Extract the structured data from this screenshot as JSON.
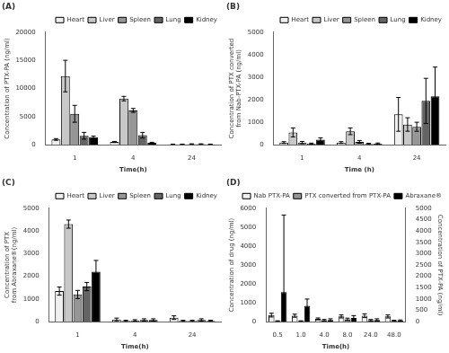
{
  "chart_data": [
    {
      "type": "bar",
      "title": "(A)",
      "xlabel": "Time(h)",
      "ylabel": "Concentration of PTX-PA (ng/ml)",
      "categories": [
        "1",
        "4",
        "24"
      ],
      "series": [
        {
          "name": "Heart",
          "color": "#f0f0f0",
          "values": [
            950,
            500,
            80
          ],
          "errors": [
            150,
            100,
            40
          ]
        },
        {
          "name": "Liver",
          "color": "#c8c8c8",
          "values": [
            12200,
            8200,
            80
          ],
          "errors": [
            2800,
            400,
            40
          ]
        },
        {
          "name": "Spleen",
          "color": "#969696",
          "values": [
            5500,
            6100,
            120
          ],
          "errors": [
            1500,
            350,
            50
          ]
        },
        {
          "name": "Lung",
          "color": "#646464",
          "values": [
            1600,
            1700,
            120
          ],
          "errors": [
            600,
            500,
            50
          ]
        },
        {
          "name": "Kidney",
          "color": "#000000",
          "values": [
            1350,
            350,
            80
          ],
          "errors": [
            200,
            100,
            40
          ]
        }
      ],
      "ylim": [
        0,
        20000
      ],
      "yticks": [
        0,
        5000,
        10000,
        15000,
        20000
      ],
      "grid": false,
      "legend": "upper right"
    },
    {
      "type": "bar",
      "title": "(B)",
      "xlabel": "Time (h)",
      "ylabel": "Concentration of PTX converted from Nab-PTX-PA (ng/ml)",
      "categories": [
        "1",
        "4",
        "24"
      ],
      "series": [
        {
          "name": "Heart",
          "color": "#f0f0f0",
          "values": [
            100,
            100,
            1350
          ],
          "errors": [
            40,
            40,
            750
          ]
        },
        {
          "name": "Liver",
          "color": "#c8c8c8",
          "values": [
            550,
            600,
            900
          ],
          "errors": [
            200,
            150,
            300
          ]
        },
        {
          "name": "Spleen",
          "color": "#969696",
          "values": [
            100,
            130,
            800
          ],
          "errors": [
            50,
            60,
            200
          ]
        },
        {
          "name": "Lung",
          "color": "#646464",
          "values": [
            50,
            40,
            1950
          ],
          "errors": [
            25,
            25,
            1000
          ]
        },
        {
          "name": "Kidney",
          "color": "#000000",
          "values": [
            230,
            50,
            2150
          ],
          "errors": [
            80,
            30,
            1300
          ]
        }
      ],
      "ylim": [
        0,
        5000
      ],
      "yticks": [
        0,
        1000,
        2000,
        3000,
        4000,
        5000
      ],
      "grid": false,
      "legend": "upper right"
    },
    {
      "type": "bar",
      "title": "(C)",
      "xlabel": "Time(h)",
      "ylabel": "Concentration of PTX from Abraxane®(ng/ml)",
      "categories": [
        "1",
        "4",
        "24"
      ],
      "series": [
        {
          "name": "Heart",
          "color": "#f0f0f0",
          "values": [
            1350,
            100,
            180
          ],
          "errors": [
            180,
            60,
            80
          ]
        },
        {
          "name": "Liver",
          "color": "#c8c8c8",
          "values": [
            4300,
            40,
            40
          ],
          "errors": [
            180,
            25,
            25
          ]
        },
        {
          "name": "Spleen",
          "color": "#969696",
          "values": [
            1200,
            60,
            40
          ],
          "errors": [
            180,
            30,
            25
          ]
        },
        {
          "name": "Lung",
          "color": "#646464",
          "values": [
            1550,
            80,
            80
          ],
          "errors": [
            180,
            50,
            50
          ]
        },
        {
          "name": "Kidney",
          "color": "#000000",
          "values": [
            2200,
            80,
            40
          ],
          "errors": [
            500,
            50,
            25
          ]
        }
      ],
      "ylim": [
        0,
        5000
      ],
      "yticks": [
        0,
        1000,
        2000,
        3000,
        4000,
        5000
      ],
      "grid": false,
      "legend": "upper right"
    },
    {
      "type": "bar",
      "title": "(D)",
      "xlabel": "Time(h)",
      "ylabel": "Concentration of drug (ng/ml)",
      "y2label": "Concentration of PTX-PA (ng/ml)",
      "categories": [
        "0.5",
        "1.0",
        "4.0",
        "8.0",
        "24.0",
        "48.0"
      ],
      "series": [
        {
          "name": "Nab PTX-PA",
          "color": "#f0f0f0",
          "values": [
            350,
            320,
            150,
            280,
            320,
            280
          ],
          "errors": [
            100,
            80,
            50,
            80,
            100,
            80
          ]
        },
        {
          "name": "PTX converted from PTX-PA",
          "color": "#969696",
          "values": [
            30,
            30,
            80,
            130,
            80,
            50
          ],
          "errors": [
            20,
            20,
            40,
            60,
            40,
            30
          ]
        },
        {
          "name": "Abraxane®",
          "color": "#000000",
          "values": [
            1300,
            700,
            80,
            170,
            80,
            50
          ],
          "errors": [
            3400,
            300,
            50,
            100,
            50,
            30
          ],
          "axis": "y2"
        }
      ],
      "ylim": [
        0,
        6000
      ],
      "yticks": [
        0,
        1000,
        2000,
        3000,
        4000,
        5000,
        6000
      ],
      "y2lim": [
        0,
        5000
      ],
      "y2ticks": [
        0,
        500,
        1000,
        1500,
        2000,
        2500,
        3000,
        3500,
        4000,
        4500,
        5000
      ],
      "grid": false,
      "legend": "upper right"
    }
  ]
}
